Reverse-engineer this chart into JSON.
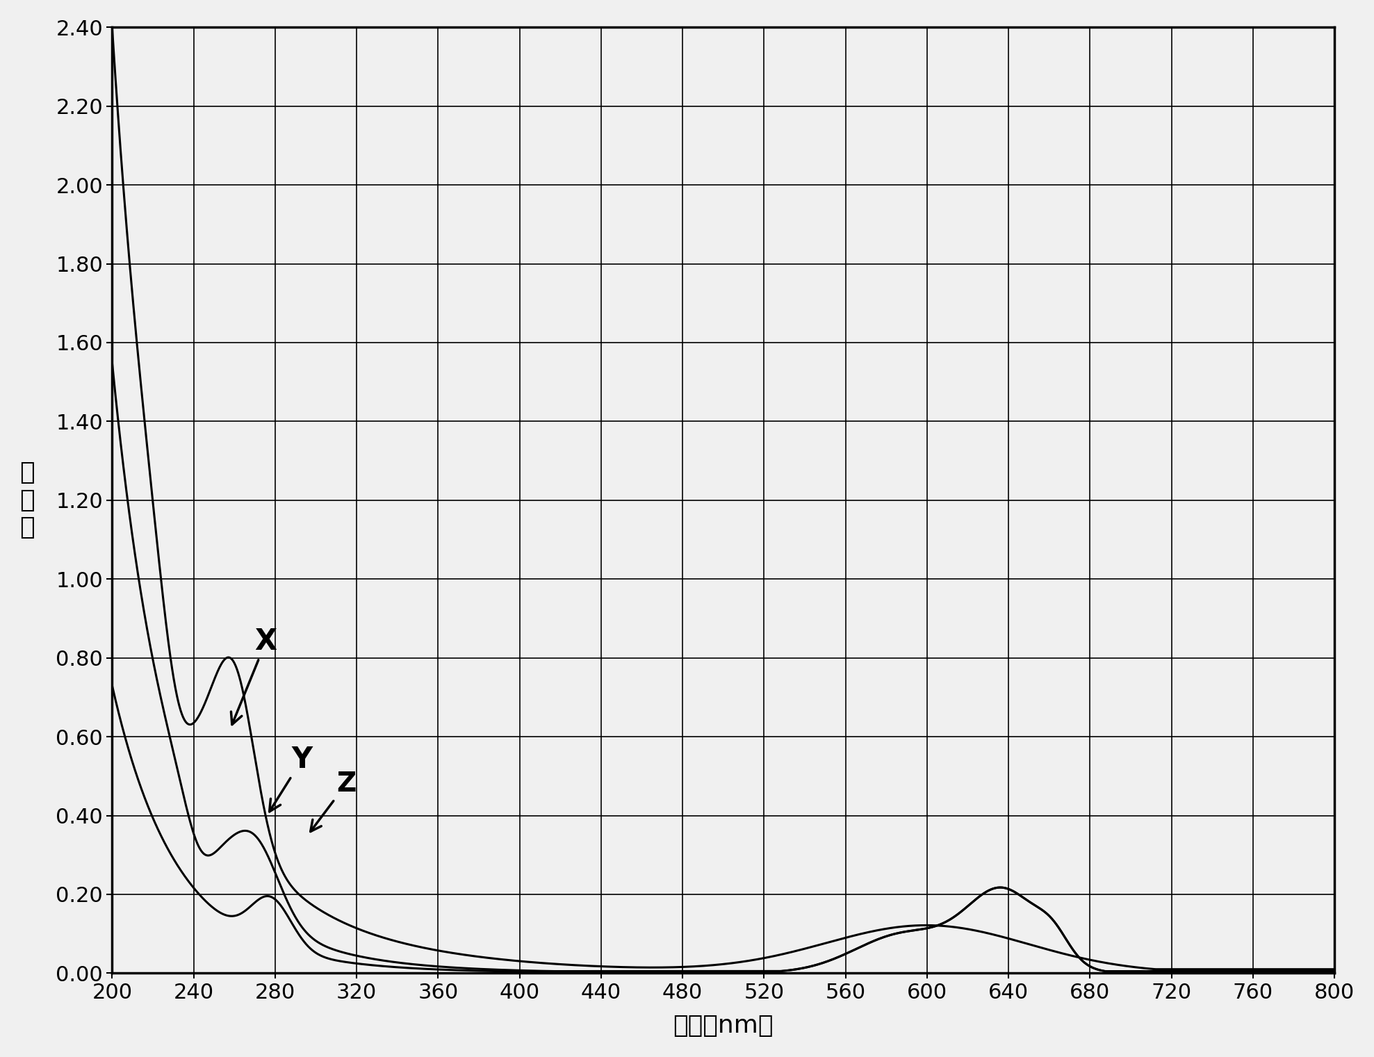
{
  "title": "",
  "xlabel": "波长（nm）",
  "ylabel": "吸\n光\n度",
  "xlim": [
    200,
    800
  ],
  "ylim": [
    0.0,
    2.4
  ],
  "xticks": [
    200,
    240,
    280,
    320,
    360,
    400,
    440,
    480,
    520,
    560,
    600,
    640,
    680,
    720,
    760,
    800
  ],
  "yticks": [
    0.0,
    0.2,
    0.4,
    0.6,
    0.8,
    1.0,
    1.2,
    1.4,
    1.6,
    1.8,
    2.0,
    2.2,
    2.4
  ],
  "line_color": "#000000",
  "background_color": "#f0f0f0",
  "grid_color": "#000000"
}
